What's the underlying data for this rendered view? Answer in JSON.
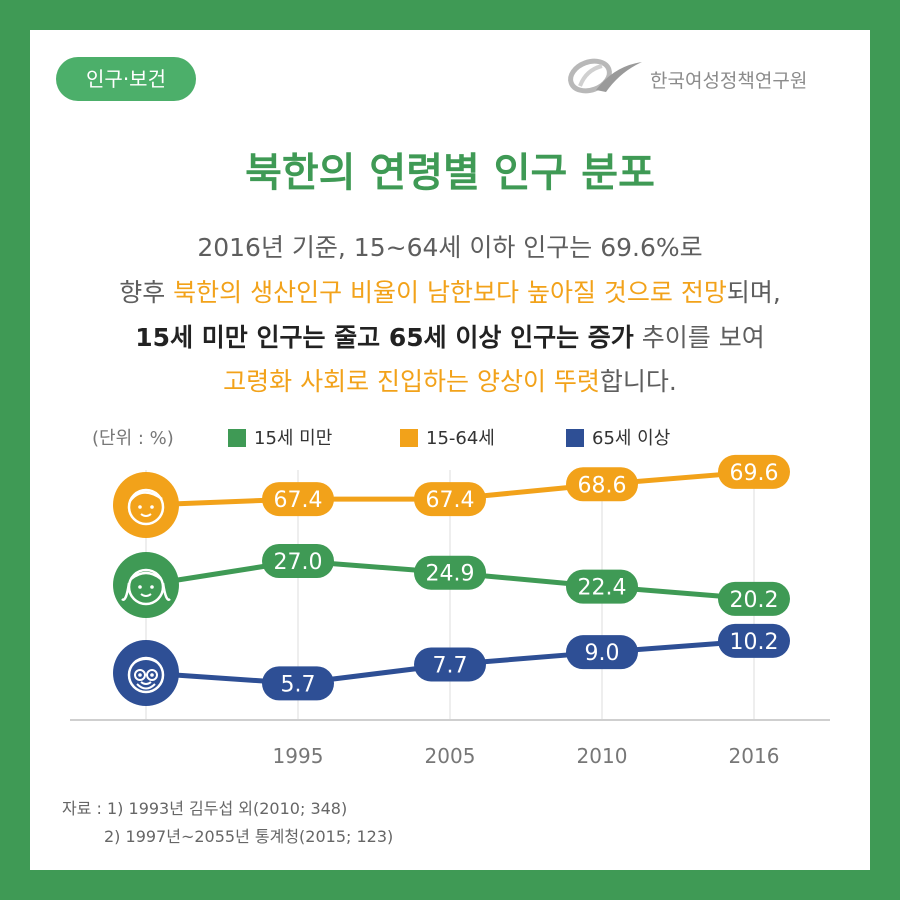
{
  "badge": "인구·보건",
  "org": "한국여성정책연구원",
  "title": "북한의 연령별 인구 분포",
  "desc": {
    "l1": "2016년 기준, 15~64세 이하 인구는 69.6%로",
    "l2a": "향후 ",
    "l2b": "북한의 생산인구 비율이 남한보다 높아질 것으로 전망",
    "l2c": "되며,",
    "l3a": "15세 미만 인구는 줄고 65세 이상 인구는 증가",
    "l3b": " 추이를 보여",
    "l4a": "고령화 사회로 진입하는 양상이 뚜렷",
    "l4b": "합니다."
  },
  "unit": "(단위 : %)",
  "chart_data": {
    "type": "line",
    "x": [
      "1995",
      "2005",
      "2010",
      "2016"
    ],
    "series": [
      {
        "name": "15세 미만",
        "color": "#3f9a55",
        "icon": "child-face-icon",
        "values": [
          27.0,
          24.9,
          22.4,
          20.2
        ]
      },
      {
        "name": "15-64세",
        "color": "#f2a21a",
        "icon": "adult-face-icon",
        "values": [
          67.4,
          67.4,
          68.6,
          69.6
        ]
      },
      {
        "name": "65세 이상",
        "color": "#2e4f95",
        "icon": "elder-face-icon",
        "values": [
          5.7,
          7.7,
          9.0,
          10.2
        ]
      }
    ]
  },
  "source": {
    "l1": "자료 : 1) 1993년 김두섭 외(2010; 348)",
    "l2": "2) 1997년~2055년 통계청(2015; 123)"
  }
}
